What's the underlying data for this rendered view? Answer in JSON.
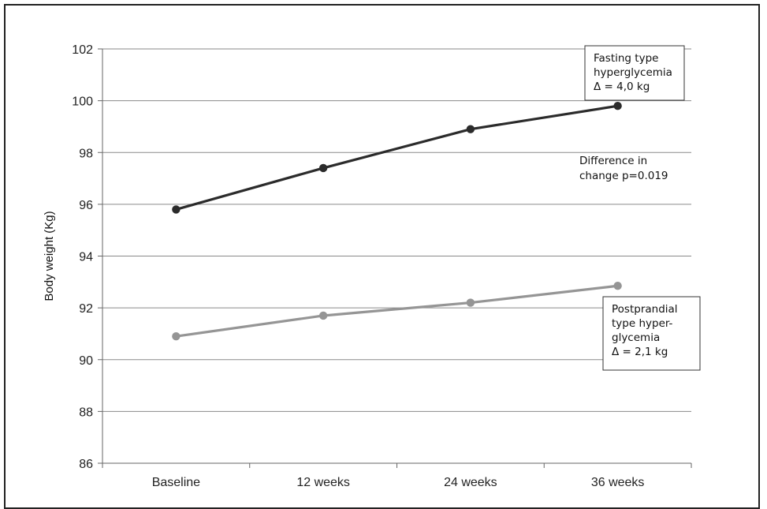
{
  "chart_data": {
    "type": "line",
    "ylabel": "Body weight (Kg)",
    "xlabel": "",
    "ylim": [
      86,
      102
    ],
    "yticks": [
      "86",
      "88",
      "90",
      "92",
      "94",
      "96",
      "98",
      "100",
      "102"
    ],
    "categories": [
      "Baseline",
      "12 weeks",
      "24 weeks",
      "36 weeks"
    ],
    "grid": true,
    "series": [
      {
        "name": "Fasting type hyperglycemia",
        "values": [
          95.8,
          97.4,
          98.9,
          99.8
        ],
        "color": "#2b2b2b",
        "label_lines": [
          "Fasting type",
          "hyperglycemia",
          "Δ = 4,0 kg"
        ]
      },
      {
        "name": "Postprandial type hyperglycemia",
        "values": [
          90.9,
          91.7,
          92.2,
          92.85
        ],
        "color": "#959595",
        "label_lines": [
          "Postprandial",
          "type hyper-",
          "glycemia",
          "Δ = 2,1 kg"
        ]
      }
    ],
    "annotation_lines": [
      "Difference in",
      "change p=0.019"
    ]
  }
}
